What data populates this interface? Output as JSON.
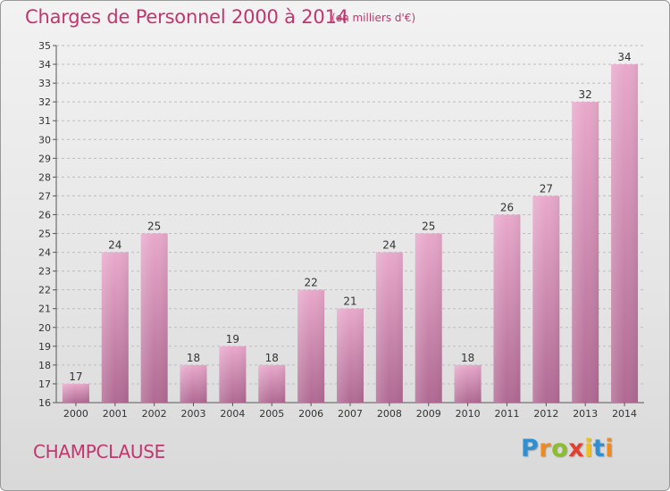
{
  "header": {
    "title": "Charges de Personnel 2000 à 2014",
    "subtitle": "(en milliers d'€)"
  },
  "footer": {
    "commune": "CHAMPCLAUSE",
    "logo_letters": [
      "P",
      "r",
      "o",
      "x",
      "i",
      "t",
      "i"
    ]
  },
  "colors": {
    "title": "#c2366f",
    "bar_top": "#e8a9cb",
    "bar_bottom": "#b06a93"
  },
  "chart_data": {
    "type": "bar",
    "title": "Charges de Personnel 2000 à 2014",
    "subtitle": "(en milliers d'€)",
    "categories": [
      "2000",
      "2001",
      "2002",
      "2003",
      "2004",
      "2005",
      "2006",
      "2007",
      "2008",
      "2009",
      "2010",
      "2011",
      "2012",
      "2013",
      "2014"
    ],
    "values": [
      17,
      24,
      25,
      18,
      19,
      18,
      22,
      21,
      24,
      25,
      18,
      26,
      27,
      32,
      34
    ],
    "ylim": [
      16,
      35
    ],
    "yticks": [
      16,
      17,
      18,
      19,
      20,
      21,
      22,
      23,
      24,
      25,
      26,
      27,
      28,
      29,
      30,
      31,
      32,
      33,
      34,
      35
    ],
    "xlabel": "",
    "ylabel": "",
    "grid": true,
    "data_labels": true
  }
}
